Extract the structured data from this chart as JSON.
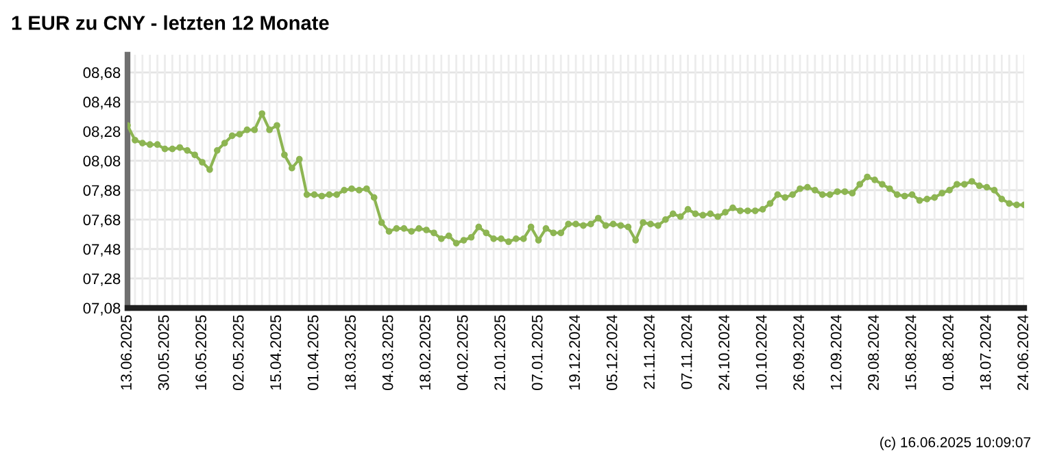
{
  "chart_data": {
    "type": "line",
    "title": "1 EUR zu CNY - letzten 12 Monate",
    "categories": [
      "13.06.2025",
      null,
      null,
      null,
      null,
      "30.05.2025",
      null,
      null,
      null,
      null,
      "16.05.2025",
      null,
      null,
      null,
      null,
      "02.05.2025",
      null,
      null,
      null,
      null,
      "15.04.2025",
      null,
      null,
      null,
      null,
      "01.04.2025",
      null,
      null,
      null,
      null,
      "18.03.2025",
      null,
      null,
      null,
      null,
      "04.03.2025",
      null,
      null,
      null,
      null,
      "18.02.2025",
      null,
      null,
      null,
      null,
      "04.02.2025",
      null,
      null,
      null,
      null,
      "21.01.2025",
      null,
      null,
      null,
      null,
      "07.01.2025",
      null,
      null,
      null,
      null,
      "19.12.2024",
      null,
      null,
      null,
      null,
      "05.12.2024",
      null,
      null,
      null,
      null,
      "21.11.2024",
      null,
      null,
      null,
      null,
      "07.11.2024",
      null,
      null,
      null,
      null,
      "24.10.2024",
      null,
      null,
      null,
      null,
      "10.10.2024",
      null,
      null,
      null,
      null,
      "26.09.2024",
      null,
      null,
      null,
      null,
      "12.09.2024",
      null,
      null,
      null,
      null,
      "29.08.2024",
      null,
      null,
      null,
      null,
      "15.08.2024",
      null,
      null,
      null,
      null,
      "01.08.2024",
      null,
      null,
      null,
      null,
      "18.07.2024",
      null,
      null,
      null,
      null,
      "24.06.2024"
    ],
    "series": [
      {
        "color": "#8db552",
        "values": [
          8.32,
          8.22,
          8.2,
          8.19,
          8.19,
          8.16,
          8.16,
          8.17,
          8.15,
          8.12,
          8.07,
          8.02,
          8.15,
          8.2,
          8.25,
          8.26,
          8.29,
          8.29,
          8.4,
          8.29,
          8.32,
          8.12,
          8.03,
          8.09,
          7.85,
          7.85,
          7.84,
          7.85,
          7.85,
          7.88,
          7.89,
          7.88,
          7.89,
          7.83,
          7.66,
          7.6,
          7.62,
          7.62,
          7.6,
          7.62,
          7.61,
          7.59,
          7.55,
          7.57,
          7.52,
          7.54,
          7.56,
          7.63,
          7.59,
          7.55,
          7.55,
          7.53,
          7.55,
          7.55,
          7.63,
          7.54,
          7.62,
          7.59,
          7.59,
          7.65,
          7.65,
          7.64,
          7.65,
          7.69,
          7.64,
          7.65,
          7.64,
          7.63,
          7.54,
          7.66,
          7.65,
          7.64,
          7.68,
          7.72,
          7.7,
          7.75,
          7.72,
          7.71,
          7.72,
          7.7,
          7.73,
          7.76,
          7.74,
          7.74,
          7.74,
          7.75,
          7.79,
          7.85,
          7.83,
          7.85,
          7.89,
          7.9,
          7.88,
          7.85,
          7.85,
          7.87,
          7.87,
          7.86,
          7.92,
          7.97,
          7.95,
          7.92,
          7.89,
          7.85,
          7.84,
          7.85,
          7.81,
          7.82,
          7.83,
          7.86,
          7.88,
          7.92,
          7.92,
          7.94,
          7.91,
          7.9,
          7.88,
          7.82,
          7.79,
          7.78,
          7.78
        ]
      }
    ],
    "ylim": [
      7.08,
      8.8
    ],
    "yticks": [
      {
        "value": 7.08,
        "label": "07,08"
      },
      {
        "value": 7.28,
        "label": "07,28"
      },
      {
        "value": 7.48,
        "label": "07,48"
      },
      {
        "value": 7.68,
        "label": "07,68"
      },
      {
        "value": 7.88,
        "label": "07,88"
      },
      {
        "value": 8.08,
        "label": "08,08"
      },
      {
        "value": 8.28,
        "label": "08,28"
      },
      {
        "value": 8.48,
        "label": "08,48"
      },
      {
        "value": 8.68,
        "label": "08,68"
      }
    ],
    "grid": true,
    "marker": "circle",
    "line_style": "solid",
    "annotations": [
      "(c) 16.06.2025 10:09:07"
    ]
  }
}
